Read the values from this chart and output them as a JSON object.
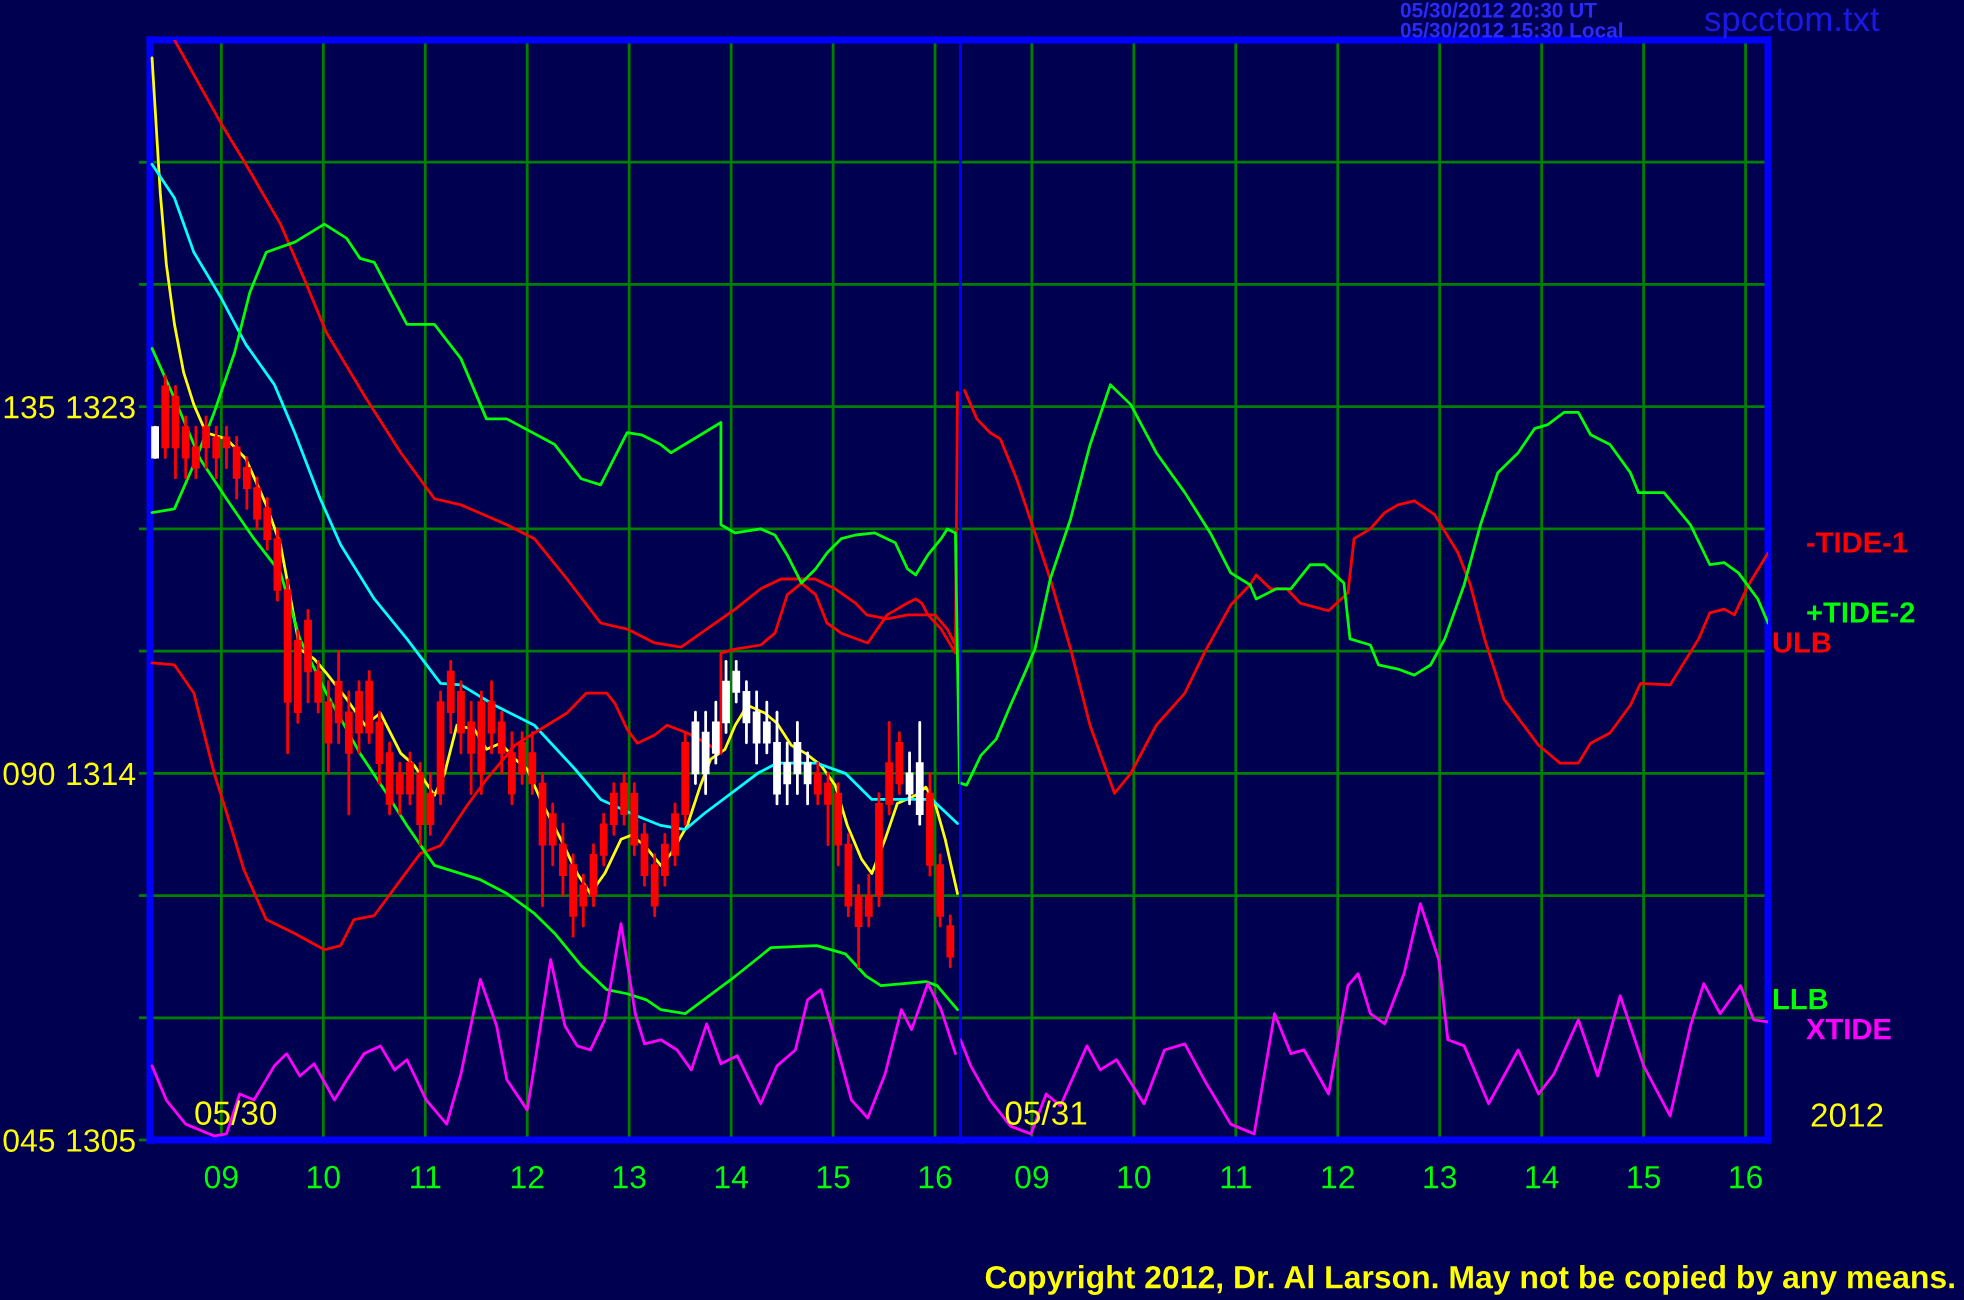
{
  "chart_data": [
    {
      "type": "candlestick",
      "x": [
        8.35,
        8.45,
        8.55,
        8.65,
        8.75,
        8.85,
        8.95,
        9.05,
        9.15,
        9.25,
        9.35,
        9.45,
        9.55,
        9.65,
        9.75,
        9.85,
        9.95,
        10.05,
        10.15,
        10.25,
        10.35,
        10.45,
        10.55,
        10.65,
        10.75,
        10.85,
        10.95,
        11.05,
        11.15,
        11.25,
        11.35,
        11.45,
        11.55,
        11.65,
        11.75,
        11.85,
        11.95,
        12.05,
        12.15,
        12.25,
        12.35,
        12.45,
        12.55,
        12.65,
        12.75,
        12.85,
        12.95,
        13.05,
        13.15,
        13.25,
        13.35,
        13.45,
        13.55,
        13.65,
        13.75,
        13.85,
        13.95,
        14.05,
        14.15,
        14.25,
        14.35,
        14.45,
        14.55,
        14.65,
        14.75,
        14.85,
        14.95,
        15.05,
        15.15,
        15.25,
        15.35,
        15.45,
        15.55,
        15.65,
        15.75,
        15.85,
        15.95,
        16.05,
        16.15
      ],
      "ohlc": [
        [
          1321.75,
          1322.5,
          1321.75,
          1322.5
        ],
        [
          1323.5,
          1323.75,
          1321.75,
          1322
        ],
        [
          1323.25,
          1323.5,
          1321.25,
          1322
        ],
        [
          1322.5,
          1322.75,
          1321.25,
          1321.75
        ],
        [
          1322,
          1322.5,
          1321.25,
          1321.5
        ],
        [
          1322.5,
          1322.75,
          1321.5,
          1322
        ],
        [
          1322.25,
          1322.5,
          1321.25,
          1321.75
        ],
        [
          1322.25,
          1322.5,
          1321.5,
          1322
        ],
        [
          1322,
          1322.25,
          1320.75,
          1321.25
        ],
        [
          1321.5,
          1321.75,
          1320.5,
          1321
        ],
        [
          1321,
          1321.25,
          1320,
          1320.25
        ],
        [
          1320.5,
          1320.75,
          1319.5,
          1319.75
        ],
        [
          1319.75,
          1320,
          1318.25,
          1318.5
        ],
        [
          1318.5,
          1318.75,
          1314.5,
          1315.75
        ],
        [
          1317.25,
          1317.5,
          1315.25,
          1315.5
        ],
        [
          1317.75,
          1318,
          1315.75,
          1316.5
        ],
        [
          1316.5,
          1316.75,
          1315.5,
          1315.75
        ],
        [
          1315.75,
          1316.25,
          1314,
          1314.75
        ],
        [
          1316.25,
          1317,
          1314.75,
          1315.25
        ],
        [
          1315.5,
          1316,
          1313,
          1314.5
        ],
        [
          1316,
          1316.25,
          1314.5,
          1315
        ],
        [
          1316.25,
          1316.5,
          1314.75,
          1315
        ],
        [
          1315.25,
          1315.5,
          1313.75,
          1314.25
        ],
        [
          1314.5,
          1314.75,
          1313,
          1313.25
        ],
        [
          1314,
          1314.25,
          1313,
          1313.5
        ],
        [
          1314.25,
          1314.5,
          1313.25,
          1313.5
        ],
        [
          1314,
          1314.25,
          1312.25,
          1312.75
        ],
        [
          1313.5,
          1314,
          1312.5,
          1312.75
        ],
        [
          1315.75,
          1316,
          1313.25,
          1313.5
        ],
        [
          1316.5,
          1316.75,
          1315,
          1315.5
        ],
        [
          1316,
          1316.25,
          1314.5,
          1315
        ],
        [
          1315.25,
          1315.75,
          1313.5,
          1314.5
        ],
        [
          1315.75,
          1316,
          1313.5,
          1314
        ],
        [
          1315.75,
          1316.25,
          1314.5,
          1315
        ],
        [
          1315.25,
          1315.5,
          1314,
          1314.5
        ],
        [
          1314.5,
          1315,
          1313.25,
          1313.5
        ],
        [
          1314.75,
          1315,
          1313.75,
          1314
        ],
        [
          1314.5,
          1315,
          1313.5,
          1313.75
        ],
        [
          1313.75,
          1314,
          1310.75,
          1312.25
        ],
        [
          1313,
          1313.25,
          1311.75,
          1312.25
        ],
        [
          1312.25,
          1312.75,
          1311,
          1311.5
        ],
        [
          1311.75,
          1312,
          1310,
          1310.5
        ],
        [
          1311.25,
          1311.5,
          1310.25,
          1310.75
        ],
        [
          1312,
          1312.25,
          1310.75,
          1311
        ],
        [
          1312.75,
          1313,
          1311.75,
          1312
        ],
        [
          1313.5,
          1313.75,
          1312.5,
          1312.75
        ],
        [
          1313.75,
          1314,
          1312.75,
          1313
        ],
        [
          1313.5,
          1313.75,
          1312,
          1312.25
        ],
        [
          1312.5,
          1312.75,
          1311.25,
          1311.5
        ],
        [
          1311.75,
          1312,
          1310.5,
          1310.75
        ],
        [
          1312.25,
          1312.5,
          1311.25,
          1311.5
        ],
        [
          1313,
          1313.25,
          1311.75,
          1312
        ],
        [
          1314.75,
          1315,
          1312.75,
          1313
        ],
        [
          1314,
          1315.5,
          1313.75,
          1315.25
        ],
        [
          1314,
          1315.5,
          1313.5,
          1315
        ],
        [
          1314.5,
          1315.75,
          1314.25,
          1315.25
        ],
        [
          1315.25,
          1316.75,
          1315,
          1316.25
        ],
        [
          1316,
          1316.75,
          1315.75,
          1316.5
        ],
        [
          1315.25,
          1316.25,
          1314.75,
          1316
        ],
        [
          1314.75,
          1316,
          1314.25,
          1315.5
        ],
        [
          1314.75,
          1315.75,
          1314.5,
          1315.25
        ],
        [
          1313.5,
          1315.5,
          1313.25,
          1314.75
        ],
        [
          1313.75,
          1314.75,
          1313.25,
          1314.25
        ],
        [
          1314,
          1315.25,
          1313.5,
          1314.75
        ],
        [
          1313.75,
          1314.5,
          1313.25,
          1314.25
        ],
        [
          1314,
          1314.25,
          1313.25,
          1313.5
        ],
        [
          1313.75,
          1314,
          1312.25,
          1313.25
        ],
        [
          1313.5,
          1313.75,
          1311.75,
          1312.25
        ],
        [
          1312.25,
          1312.5,
          1310.5,
          1310.75
        ],
        [
          1311,
          1311.25,
          1309.25,
          1310.25
        ],
        [
          1311,
          1311.5,
          1310.25,
          1310.5
        ],
        [
          1313.25,
          1313.5,
          1310.75,
          1311
        ],
        [
          1314.25,
          1315.25,
          1313,
          1313.25
        ],
        [
          1314.75,
          1315,
          1313.5,
          1313.75
        ],
        [
          1313.5,
          1314.5,
          1313.25,
          1314
        ],
        [
          1313,
          1315.25,
          1312.75,
          1314.25
        ],
        [
          1313.5,
          1314,
          1311.5,
          1311.75
        ],
        [
          1311.75,
          1312,
          1310.25,
          1310.5
        ],
        [
          1310.25,
          1310.5,
          1309.25,
          1309.5
        ]
      ],
      "colors": [
        "#ffffff",
        "#ff0000",
        "#ff0000",
        "#ff0000",
        "#ff0000",
        "#ff0000",
        "#ff0000",
        "#ff0000",
        "#ff0000",
        "#ff0000",
        "#ff0000",
        "#ff0000",
        "#ff0000",
        "#ff0000",
        "#ff0000",
        "#ff0000",
        "#ff0000",
        "#ff0000",
        "#ff0000",
        "#ff0000",
        "#ff0000",
        "#ff0000",
        "#ff0000",
        "#ff0000",
        "#ff0000",
        "#ff0000",
        "#ff0000",
        "#ff0000",
        "#ff0000",
        "#ff0000",
        "#ff0000",
        "#ff0000",
        "#ff0000",
        "#ff0000",
        "#ff0000",
        "#ff0000",
        "#ff0000",
        "#ff0000",
        "#ff0000",
        "#ff0000",
        "#ff0000",
        "#ff0000",
        "#ff0000",
        "#ff0000",
        "#ff0000",
        "#ff0000",
        "#ff0000",
        "#ff0000",
        "#ff0000",
        "#ff0000",
        "#ff0000",
        "#ff0000",
        "#ff0000",
        "#ffffff",
        "#ffffff",
        "#ffffff",
        "#ffffff",
        "#ffffff",
        "#ffffff",
        "#ffffff",
        "#ffffff",
        "#ffffff",
        "#ffffff",
        "#ffffff",
        "#ffffff",
        "#ff0000",
        "#ff0000",
        "#ff0000",
        "#ff0000",
        "#ff0000",
        "#ff0000",
        "#ff0000",
        "#ff0000",
        "#ff0000",
        "#ffffff",
        "#ffffff",
        "#ff0000",
        "#ff0000",
        "#ff0000"
      ],
      "series": [
        {
          "type": "line",
          "color": "#ffff00",
          "x": [
            8.32,
            8.4,
            8.46,
            8.54,
            8.63,
            8.73,
            8.85,
            9.05,
            9.24,
            9.44,
            9.58,
            9.68,
            9.77,
            9.91,
            10.03,
            10.23,
            10.41,
            10.56,
            10.76,
            10.89,
            11.09,
            11.19,
            11.31,
            11.48,
            11.6,
            11.74,
            11.88,
            12.0,
            12.13,
            12.33,
            12.49,
            12.62,
            12.76,
            12.92,
            13.02,
            13.15,
            13.31,
            13.41,
            13.57,
            13.7,
            13.8,
            13.94,
            14.04,
            14.16,
            14.33,
            14.45,
            14.59,
            14.73,
            14.88,
            15.02,
            15.14,
            15.28,
            15.38,
            15.51,
            15.63,
            15.81,
            15.91,
            16.0,
            16.1,
            16.22
          ],
          "values": [
            1331.56,
            1328.27,
            1326.5,
            1325.02,
            1323.84,
            1323.05,
            1322.36,
            1322.21,
            1321.72,
            1320.59,
            1319.61,
            1318.28,
            1317.05,
            1316.81,
            1316.46,
            1315.82,
            1315.18,
            1315.48,
            1314.49,
            1314.2,
            1313.46,
            1314.0,
            1315.18,
            1315.08,
            1314.59,
            1314.74,
            1314.35,
            1314.1,
            1313.36,
            1312.38,
            1311.54,
            1311.05,
            1311.54,
            1312.38,
            1312.48,
            1312.23,
            1311.74,
            1312.03,
            1312.72,
            1313.71,
            1314.35,
            1314.59,
            1315.18,
            1315.67,
            1315.48,
            1315.23,
            1314.69,
            1314.49,
            1314.2,
            1313.71,
            1312.72,
            1311.89,
            1311.54,
            1312.38,
            1313.26,
            1313.46,
            1313.66,
            1313.26,
            1312.38,
            1311.05
          ]
        },
        {
          "type": "line",
          "color": "#00ffff",
          "x": [
            8.32,
            8.54,
            8.73,
            9.0,
            9.24,
            9.52,
            9.72,
            9.97,
            10.17,
            10.5,
            10.82,
            11.15,
            11.35,
            11.68,
            12.07,
            12.47,
            12.72,
            13.06,
            13.31,
            13.55,
            13.74,
            14.0,
            14.26,
            14.45,
            14.84,
            15.12,
            15.38,
            15.71,
            15.97,
            16.22
          ],
          "values": [
            1328.95,
            1328.12,
            1326.79,
            1325.66,
            1324.53,
            1323.54,
            1322.36,
            1320.74,
            1319.61,
            1318.28,
            1317.3,
            1316.21,
            1316.17,
            1315.67,
            1315.18,
            1314.1,
            1313.36,
            1312.97,
            1312.72,
            1312.62,
            1313.02,
            1313.51,
            1314.0,
            1314.25,
            1314.25,
            1314.0,
            1313.36,
            1313.36,
            1313.36,
            1312.77
          ]
        },
        {
          "type": "line",
          "name": "ULB",
          "color": "#ff0000",
          "x": [
            8.54,
            9.0,
            9.24,
            9.58,
            9.81,
            10.03,
            10.42,
            10.76,
            11.09,
            11.35,
            11.8,
            12.07,
            12.39,
            12.72,
            12.98,
            13.25,
            13.51,
            13.76,
            14.04,
            14.29,
            14.49,
            14.82,
            15.02,
            15.22,
            15.33,
            15.53,
            15.73,
            16.0,
            16.12,
            16.2
          ],
          "values": [
            1332.0,
            1329.94,
            1328.95,
            1327.48,
            1326.15,
            1324.82,
            1323.2,
            1321.87,
            1320.74,
            1320.59,
            1320.1,
            1319.76,
            1318.77,
            1317.69,
            1317.54,
            1317.2,
            1317.1,
            1317.54,
            1318.03,
            1318.53,
            1318.77,
            1318.77,
            1318.53,
            1318.18,
            1317.89,
            1317.79,
            1317.89,
            1317.89,
            1317.54,
            1317.15
          ]
        },
        {
          "type": "line",
          "color": "#ff0000",
          "x": [
            8.32,
            8.54,
            8.73,
            8.93,
            9.09,
            9.22,
            9.44,
            9.72,
            10.01,
            10.17,
            10.3,
            10.5,
            10.76,
            10.95,
            11.15,
            11.41,
            11.6,
            11.88,
            12.07,
            12.39,
            12.58,
            12.78,
            12.86,
            12.98,
            13.08,
            13.25,
            13.37,
            13.57,
            13.76,
            13.9,
            13.9,
            14.04,
            14.29,
            14.43,
            14.55,
            14.69,
            14.83,
            14.94,
            15.08,
            15.34,
            15.53,
            15.73,
            15.81,
            15.87,
            15.93,
            16.06,
            16.2,
            16.22
          ],
          "values": [
            1316.71,
            1316.66,
            1315.97,
            1314.0,
            1312.72,
            1311.64,
            1310.41,
            1310.07,
            1309.67,
            1309.77,
            1310.41,
            1310.51,
            1311.39,
            1312.03,
            1312.23,
            1313.21,
            1313.85,
            1314.69,
            1314.99,
            1315.48,
            1315.97,
            1315.97,
            1315.72,
            1315.08,
            1314.74,
            1314.94,
            1315.18,
            1314.99,
            1314.74,
            1314.49,
            1316.95,
            1317.05,
            1317.15,
            1317.44,
            1318.38,
            1318.67,
            1318.38,
            1317.69,
            1317.44,
            1317.2,
            1317.89,
            1318.18,
            1318.28,
            1318.18,
            1317.89,
            1317.54,
            1316.95,
            1323.35
          ]
        },
        {
          "type": "line",
          "color": "#00ff00",
          "x": [
            8.32,
            8.54,
            8.73,
            8.93,
            9.13,
            9.28,
            9.44,
            9.72,
            10.01,
            10.23,
            10.36,
            10.5,
            10.82,
            11.09,
            11.35,
            11.6,
            11.8,
            12.27,
            12.53,
            12.72,
            12.98,
            13.12,
            13.31,
            13.41,
            13.9,
            13.9,
            14.04,
            14.29,
            14.43,
            14.55,
            14.69,
            14.83,
            14.94,
            15.08,
            15.22,
            15.41,
            15.61,
            15.73,
            15.81,
            15.93,
            16.06,
            16.12,
            16.2,
            16.24
          ],
          "values": [
            1320.4,
            1320.49,
            1321.58,
            1322.86,
            1324.33,
            1325.81,
            1326.79,
            1327.04,
            1327.48,
            1327.13,
            1326.64,
            1326.54,
            1325.02,
            1325.02,
            1324.18,
            1322.7,
            1322.7,
            1322.07,
            1321.23,
            1321.08,
            1322.36,
            1322.31,
            1322.07,
            1321.87,
            1322.61,
            1320.1,
            1319.9,
            1320.0,
            1319.85,
            1319.36,
            1318.67,
            1319.02,
            1319.41,
            1319.76,
            1319.85,
            1319.9,
            1319.66,
            1319.02,
            1318.87,
            1319.36,
            1319.76,
            1320.0,
            1319.9,
            1313.76
          ]
        },
        {
          "type": "line",
          "name": "LLB",
          "color": "#00ff00",
          "x": [
            8.32,
            8.54,
            8.79,
            9.05,
            9.32,
            9.58,
            9.77,
            10.03,
            10.36,
            10.62,
            10.82,
            11.09,
            11.35,
            11.54,
            11.8,
            12.07,
            12.27,
            12.53,
            12.78,
            12.98,
            13.17,
            13.31,
            13.55,
            14.0,
            14.39,
            14.84,
            15.12,
            15.32,
            15.47,
            15.91,
            16.02,
            16.22
          ],
          "values": [
            1324.43,
            1323.2,
            1321.72,
            1320.74,
            1319.76,
            1318.92,
            1317.3,
            1315.97,
            1314.49,
            1313.51,
            1312.72,
            1311.74,
            1311.54,
            1311.39,
            1311.05,
            1310.56,
            1310.07,
            1309.28,
            1308.69,
            1308.59,
            1308.44,
            1308.2,
            1308.1,
            1308.94,
            1309.72,
            1309.77,
            1309.57,
            1309.03,
            1308.79,
            1308.89,
            1308.79,
            1308.2
          ]
        },
        {
          "type": "line",
          "color": "#ff00ff",
          "x": [
            8.32,
            8.46,
            8.65,
            8.93,
            9.05,
            9.18,
            9.32,
            9.52,
            9.64,
            9.77,
            9.91,
            10.11,
            10.23,
            10.4,
            10.56,
            10.7,
            10.82,
            11.01,
            11.21,
            11.35,
            11.54,
            11.7,
            11.8,
            12.0,
            12.07,
            12.23,
            12.37,
            12.49,
            12.62,
            12.76,
            12.92,
            13.06,
            13.15,
            13.31,
            13.47,
            13.61,
            13.76,
            13.9,
            14.06,
            14.29,
            14.45,
            14.63,
            14.75,
            14.88,
            15.02,
            15.18,
            15.34,
            15.51,
            15.67,
            15.77,
            15.93,
            16.06,
            16.2
          ],
          "values": [
            1306.82,
            1305.98,
            1305.39,
            1305.1,
            1305.15,
            1306.13,
            1305.98,
            1306.82,
            1307.12,
            1306.57,
            1306.87,
            1305.98,
            1306.48,
            1307.12,
            1307.31,
            1306.72,
            1306.97,
            1305.98,
            1305.39,
            1306.62,
            1308.94,
            1307.8,
            1306.48,
            1305.74,
            1306.82,
            1309.43,
            1307.8,
            1307.31,
            1307.21,
            1307.95,
            1310.31,
            1308.1,
            1307.36,
            1307.46,
            1307.21,
            1306.72,
            1307.85,
            1306.87,
            1307.07,
            1305.89,
            1306.82,
            1307.21,
            1308.44,
            1308.69,
            1307.46,
            1305.98,
            1305.54,
            1306.62,
            1308.2,
            1307.71,
            1308.84,
            1308.2,
            1307.12
          ]
        }
      ],
      "xlim": [
        8.3,
        16.25
      ],
      "ylim": [
        1305,
        1332
      ],
      "xticks": [
        {
          "value": 9,
          "label": "09"
        },
        10,
        11,
        12,
        13,
        14,
        15,
        16
      ],
      "yticks": [
        1305,
        {
          "value": 1308,
          "label": null
        },
        {
          "value": 1311,
          "label": null
        },
        1314,
        {
          "value": 1317,
          "label": null
        },
        {
          "value": 1320,
          "label": null
        },
        1323,
        {
          "value": 1326,
          "label": null
        },
        {
          "value": 1329,
          "label": null
        }
      ],
      "y2lim": [
        45,
        180
      ],
      "y2ticks": [
        {
          "value": 45,
          "label": "045"
        },
        {
          "value": 90,
          "label": "090"
        },
        135
      ],
      "grid": true,
      "annotations": [
        "05/30"
      ]
    },
    {
      "type": "line",
      "series": [
        {
          "type": "line",
          "name": "-TIDE-1",
          "color": "#ff0000",
          "x": [
            8.34,
            8.46,
            8.59,
            8.69,
            8.85,
            9.03,
            9.18,
            9.38,
            9.57,
            9.81,
            9.97,
            10.22,
            10.5,
            10.69,
            10.95,
            11.14,
            11.2,
            11.34,
            11.5,
            11.63,
            11.91,
            12.1,
            12.16,
            12.32,
            12.46,
            12.59,
            12.75,
            12.95,
            13.18,
            13.3,
            13.44,
            13.63,
            13.97,
            14.18,
            14.36,
            14.48,
            14.67,
            14.87,
            14.97,
            15.26,
            15.54,
            15.65,
            15.79,
            15.89,
            16.03,
            16.22
          ],
          "values": [
            1323.4,
            1322.7,
            1322.36,
            1322.21,
            1321.23,
            1319.9,
            1318.77,
            1317.05,
            1315.18,
            1313.51,
            1314.0,
            1315.18,
            1315.97,
            1316.95,
            1318.13,
            1318.63,
            1318.87,
            1318.53,
            1318.53,
            1318.18,
            1317.99,
            1318.43,
            1319.76,
            1320.0,
            1320.4,
            1320.59,
            1320.69,
            1320.35,
            1319.41,
            1318.63,
            1317.3,
            1315.82,
            1314.69,
            1314.25,
            1314.25,
            1314.74,
            1314.99,
            1315.67,
            1316.21,
            1316.17,
            1317.3,
            1317.94,
            1318.03,
            1317.89,
            1318.63,
            1319.41
          ]
        },
        {
          "type": "line",
          "name": "+TIDE-2",
          "color": "#00ff00",
          "x": [
            8.3,
            8.36,
            8.5,
            8.65,
            8.79,
            8.93,
            9.03,
            9.18,
            9.38,
            9.57,
            9.77,
            9.97,
            10.22,
            10.5,
            10.75,
            10.95,
            11.14,
            11.2,
            11.4,
            11.54,
            11.73,
            11.87,
            12.06,
            12.12,
            12.32,
            12.4,
            12.59,
            12.75,
            12.91,
            13.05,
            13.24,
            13.4,
            13.57,
            13.77,
            13.93,
            14.06,
            14.22,
            14.36,
            14.48,
            14.67,
            14.87,
            14.95,
            15.2,
            15.46,
            15.65,
            15.79,
            15.93,
            16.12,
            16.22
          ],
          "values": [
            1313.76,
            1313.71,
            1314.44,
            1314.84,
            1315.67,
            1316.46,
            1317.05,
            1318.77,
            1320.25,
            1322.06,
            1323.54,
            1323.05,
            1321.87,
            1320.89,
            1319.9,
            1318.92,
            1318.63,
            1318.28,
            1318.53,
            1318.53,
            1319.12,
            1319.12,
            1318.67,
            1317.3,
            1317.15,
            1316.66,
            1316.56,
            1316.41,
            1316.66,
            1317.3,
            1318.63,
            1320.1,
            1321.38,
            1321.87,
            1322.46,
            1322.56,
            1322.86,
            1322.86,
            1322.31,
            1322.07,
            1321.38,
            1320.89,
            1320.89,
            1320.1,
            1319.12,
            1319.17,
            1318.92,
            1318.28,
            1317.69
          ]
        },
        {
          "type": "line",
          "name": "XTIDE",
          "color": "#ff00ff",
          "x": [
            8.3,
            8.4,
            8.59,
            8.79,
            8.99,
            9.14,
            9.28,
            9.54,
            9.67,
            9.83,
            10.1,
            10.3,
            10.5,
            10.69,
            10.95,
            11.18,
            11.38,
            11.54,
            11.67,
            11.91,
            12.1,
            12.2,
            12.32,
            12.46,
            12.65,
            12.81,
            12.99,
            13.08,
            13.24,
            13.48,
            13.77,
            13.97,
            14.12,
            14.36,
            14.55,
            14.77,
            15.0,
            15.26,
            15.46,
            15.59,
            15.75,
            15.95,
            16.08,
            16.22
          ],
          "values": [
            1307.46,
            1306.82,
            1305.98,
            1305.34,
            1305.15,
            1306.13,
            1305.84,
            1307.31,
            1306.72,
            1306.97,
            1305.89,
            1307.21,
            1307.36,
            1306.48,
            1305.39,
            1305.15,
            1308.1,
            1307.12,
            1307.21,
            1306.13,
            1308.79,
            1309.08,
            1308.1,
            1307.85,
            1309.08,
            1310.8,
            1309.43,
            1307.46,
            1307.31,
            1305.89,
            1307.21,
            1306.13,
            1306.62,
            1307.95,
            1306.57,
            1308.54,
            1306.82,
            1305.59,
            1307.8,
            1308.84,
            1308.1,
            1308.79,
            1307.95,
            1307.9
          ]
        }
      ],
      "xlim": [
        8.3,
        16.22
      ],
      "ylim": [
        1305,
        1332
      ],
      "xticks": [
        {
          "value": 9,
          "label": "09"
        },
        10,
        11,
        12,
        13,
        14,
        15,
        16
      ],
      "yticks": [
        1305,
        {
          "value": 1308,
          "label": null
        },
        {
          "value": 1311,
          "label": null
        },
        1314,
        {
          "value": 1317,
          "label": null
        },
        {
          "value": 1320,
          "label": null
        },
        1323,
        {
          "value": 1326,
          "label": null
        },
        {
          "value": 1329,
          "label": null
        }
      ],
      "tick_labels": "x",
      "grid": true,
      "annotations": [
        "05/31",
        "2012",
        "05/30/2012 20:30 UT",
        "05/30/2012 15:30 Local",
        "spcctom.txt",
        "Copyright 2012, Dr. Al Larson. May not be copied by any means."
      ]
    }
  ]
}
